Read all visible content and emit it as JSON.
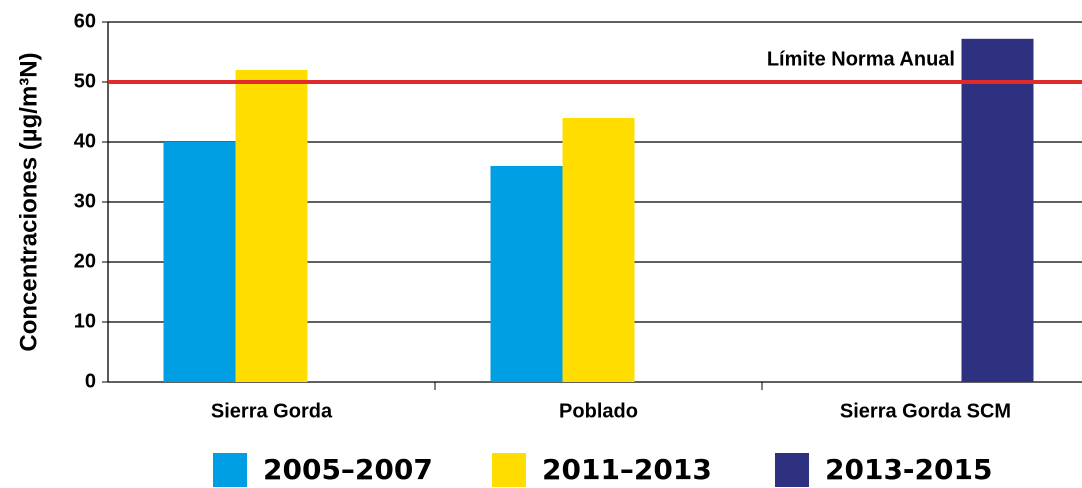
{
  "chart_data": {
    "type": "bar",
    "ylabel": "Concentraciones (µg/m³N)",
    "categories": [
      "Sierra Gorda",
      "Poblado",
      "Sierra Gorda SCM"
    ],
    "series": [
      {
        "name": "2005–2007",
        "color": "#009fe3",
        "values": [
          40,
          36,
          null
        ]
      },
      {
        "name": "2011–2013",
        "color": "#ffdd00",
        "values": [
          52,
          44,
          null
        ]
      },
      {
        "name": "2013-2015",
        "color": "#2e3080",
        "values": [
          null,
          null,
          57.2
        ]
      }
    ],
    "reference_line": {
      "value": 50,
      "label": "Límite Norma Anual",
      "color": "#e02b2b"
    },
    "ylim": [
      0,
      60
    ],
    "yticks": [
      0,
      10,
      20,
      30,
      40,
      50,
      60
    ],
    "grid": true,
    "legend": "bottom"
  }
}
